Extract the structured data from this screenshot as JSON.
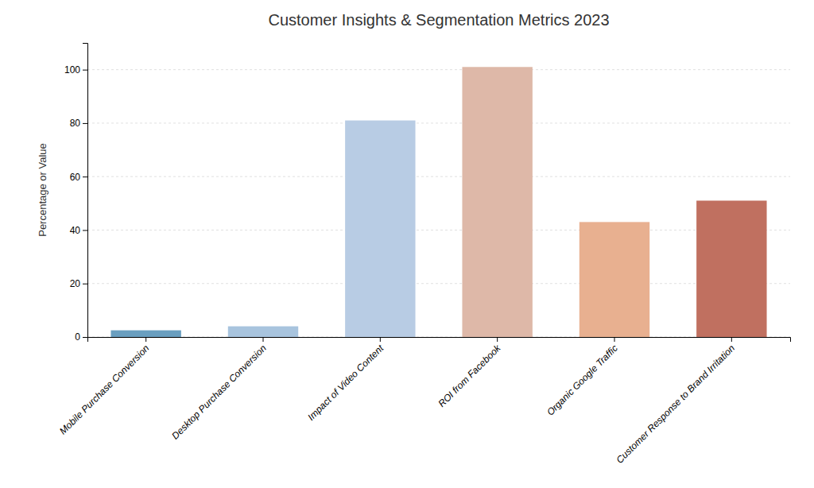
{
  "chart_data": {
    "type": "bar",
    "title": "Customer Insights & Segmentation Metrics 2023",
    "ylabel": "Percentage or Value",
    "categories": [
      "Mobile Purchase Conversion",
      "Desktop Purchase Conversion",
      "Impact of Video Content",
      "ROI from Facebook",
      "Organic Google Traffic",
      "Customer Response to Brand Irritation"
    ],
    "values": [
      2.5,
      4.0,
      81,
      101,
      43,
      51
    ],
    "colors": [
      "#6a9fc0",
      "#a8c4de",
      "#b8cce4",
      "#deb8a8",
      "#e8b090",
      "#c07060"
    ],
    "ylim": [
      0,
      110
    ],
    "yticks": [
      0,
      20,
      40,
      60,
      80,
      100
    ],
    "grid": true
  }
}
